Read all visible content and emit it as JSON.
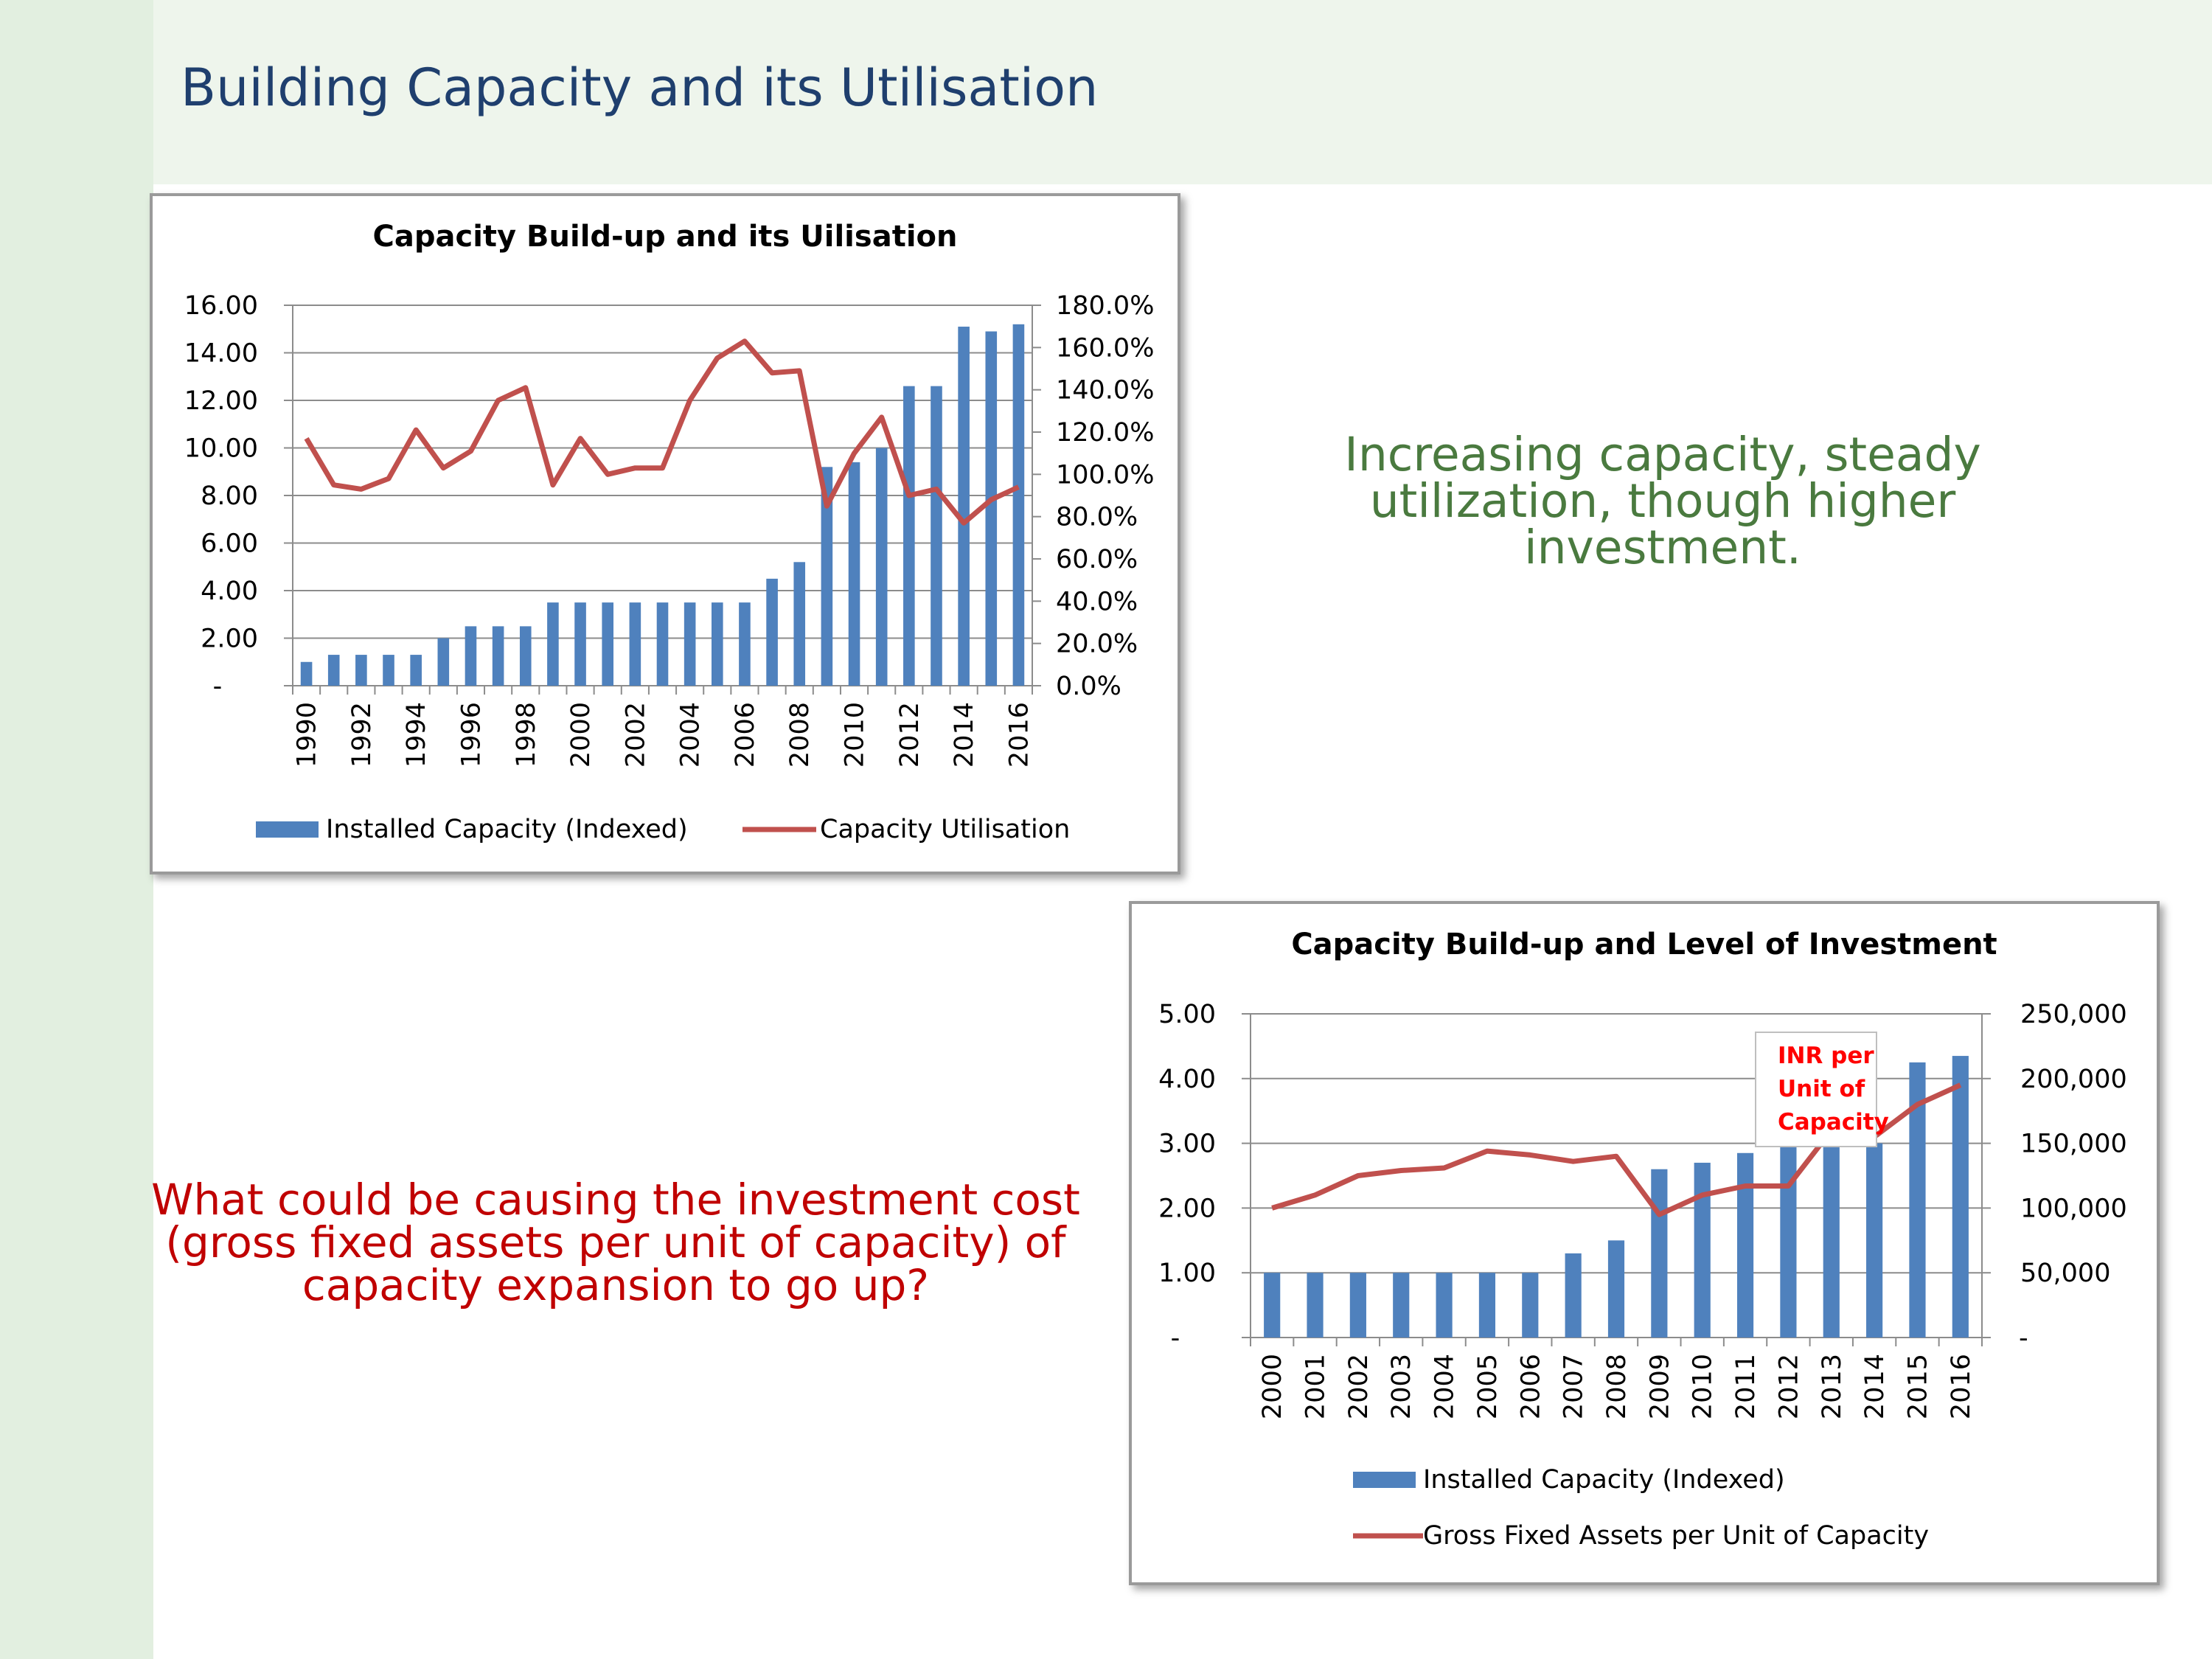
{
  "slide": {
    "title": "Building Capacity and its Utilisation",
    "note_right": [
      "Increasing capacity, steady",
      "utilization, though higher",
      "investment."
    ],
    "note_left": [
      "What could be causing the investment cost",
      "(gross fixed assets per unit of capacity) of",
      "capacity expansion to go up?"
    ]
  },
  "colors": {
    "bar": "#4f81bd",
    "line": "#c0504d",
    "title": "#1f3f6e",
    "note_green": "#4a7a3f",
    "note_red": "#c00000"
  },
  "chart_data": [
    {
      "type": "bar",
      "title": "Capacity Build-up and its Uilisation",
      "categories": [
        "1990",
        "1991",
        "1992",
        "1993",
        "1994",
        "1995",
        "1996",
        "1997",
        "1998",
        "1999",
        "2000",
        "2001",
        "2002",
        "2003",
        "2004",
        "2005",
        "2006",
        "2007",
        "2008",
        "2009",
        "2010",
        "2011",
        "2012",
        "2013",
        "2014",
        "2015",
        "2016"
      ],
      "x_tick_labels": [
        "1990",
        "1992",
        "1994",
        "1996",
        "1998",
        "2000",
        "2002",
        "2004",
        "2006",
        "2008",
        "2010",
        "2012",
        "2014",
        "2016"
      ],
      "y_left": {
        "ylim": [
          0,
          16
        ],
        "ticks": [
          "-",
          "2.00",
          "4.00",
          "6.00",
          "8.00",
          "10.00",
          "12.00",
          "14.00",
          "16.00"
        ]
      },
      "y_right": {
        "ylim": [
          0,
          180
        ],
        "ticks": [
          "0.0%",
          "20.0%",
          "40.0%",
          "60.0%",
          "80.0%",
          "100.0%",
          "120.0%",
          "140.0%",
          "160.0%",
          "180.0%"
        ]
      },
      "grid": true,
      "legend_position": "bottom",
      "series": [
        {
          "name": "Installed Capacity (Indexed)",
          "type": "bar",
          "axis": "left",
          "values": [
            1.0,
            1.3,
            1.3,
            1.3,
            1.3,
            2.0,
            2.5,
            2.5,
            2.5,
            3.5,
            3.5,
            3.5,
            3.5,
            3.5,
            3.5,
            3.5,
            3.5,
            4.5,
            5.2,
            9.2,
            9.4,
            10.0,
            12.6,
            12.6,
            15.1,
            14.9,
            15.2
          ]
        },
        {
          "name": "Capacity Utilisation",
          "type": "line",
          "axis": "right",
          "values": [
            117,
            95,
            93,
            98,
            121,
            103,
            111,
            135,
            141,
            95,
            117,
            100,
            103,
            103,
            135,
            155,
            163,
            148,
            149,
            85,
            110,
            127,
            90,
            93,
            77,
            88,
            94
          ]
        }
      ]
    },
    {
      "type": "bar",
      "title": "Capacity Build-up and Level of Investment",
      "categories": [
        "2000",
        "2001",
        "2002",
        "2003",
        "2004",
        "2005",
        "2006",
        "2007",
        "2008",
        "2009",
        "2010",
        "2011",
        "2012",
        "2013",
        "2014",
        "2015",
        "2016"
      ],
      "x_tick_labels": [
        "2000",
        "2001",
        "2002",
        "2003",
        "2004",
        "2005",
        "2006",
        "2007",
        "2008",
        "2009",
        "2010",
        "2011",
        "2012",
        "2013",
        "2014",
        "2015",
        "2016"
      ],
      "y_left": {
        "ylim": [
          0,
          5
        ],
        "ticks": [
          "-",
          "1.00",
          "2.00",
          "3.00",
          "4.00",
          "5.00"
        ]
      },
      "y_right": {
        "ylim": [
          0,
          250000
        ],
        "ticks": [
          "-",
          "50,000",
          "100,000",
          "150,000",
          "200,000",
          "250,000"
        ]
      },
      "grid": true,
      "legend_position": "bottom",
      "annotation": "INR per Unit of Capacity",
      "series": [
        {
          "name": "Installed Capacity (Indexed)",
          "type": "bar",
          "axis": "left",
          "values": [
            1.0,
            1.0,
            1.0,
            1.0,
            1.0,
            1.0,
            1.0,
            1.3,
            1.5,
            2.6,
            2.7,
            2.85,
            3.0,
            3.0,
            3.0,
            4.25,
            4.35
          ]
        },
        {
          "name": "Gross Fixed Assets per Unit of Capacity",
          "type": "line",
          "axis": "right",
          "values": [
            100000,
            110000,
            125000,
            129000,
            131000,
            144000,
            141000,
            136000,
            140000,
            95000,
            110000,
            117000,
            117000,
            160000,
            155000,
            180000,
            195000
          ]
        }
      ]
    }
  ]
}
